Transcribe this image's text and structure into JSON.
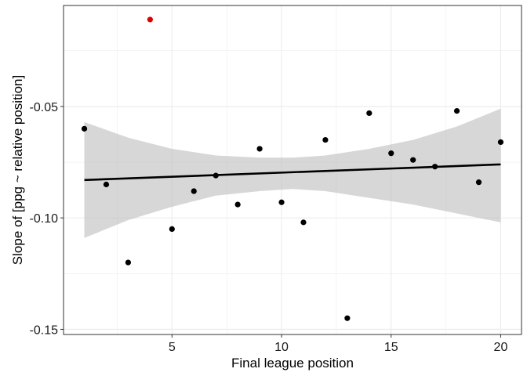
{
  "chart_data": {
    "type": "scatter",
    "xlabel": "Final league position",
    "ylabel": "Slope of [ppg ~ relative position]",
    "xlim": [
      0.05,
      20.95
    ],
    "ylim": [
      -0.1523,
      -0.0047
    ],
    "x_ticks": [
      5,
      10,
      15,
      20
    ],
    "x_tick_labels": [
      "5",
      "10",
      "15",
      "20"
    ],
    "y_ticks": [
      -0.15,
      -0.1,
      -0.05
    ],
    "y_tick_labels": [
      "-0.15",
      "-0.10",
      "-0.05"
    ],
    "grid": true,
    "legend": "none",
    "points": [
      {
        "x": 1,
        "y": -0.06
      },
      {
        "x": 2,
        "y": -0.085
      },
      {
        "x": 3,
        "y": -0.12
      },
      {
        "x": 4,
        "y": -0.011,
        "highlight": true
      },
      {
        "x": 5,
        "y": -0.105
      },
      {
        "x": 6,
        "y": -0.088
      },
      {
        "x": 7,
        "y": -0.081
      },
      {
        "x": 8,
        "y": -0.094
      },
      {
        "x": 9,
        "y": -0.069
      },
      {
        "x": 10,
        "y": -0.093
      },
      {
        "x": 11,
        "y": -0.102
      },
      {
        "x": 12,
        "y": -0.065
      },
      {
        "x": 13,
        "y": -0.145
      },
      {
        "x": 14,
        "y": -0.053
      },
      {
        "x": 15,
        "y": -0.071
      },
      {
        "x": 16,
        "y": -0.074
      },
      {
        "x": 17,
        "y": -0.077
      },
      {
        "x": 18,
        "y": -0.052
      },
      {
        "x": 19,
        "y": -0.084
      },
      {
        "x": 20,
        "y": -0.066
      }
    ],
    "fit_line": {
      "x": [
        1,
        20
      ],
      "y": [
        -0.083,
        -0.076
      ]
    },
    "confidence_band": {
      "x": [
        1,
        3,
        5,
        7,
        9,
        10.5,
        12,
        14,
        16,
        18,
        20
      ],
      "lower": [
        -0.109,
        -0.101,
        -0.095,
        -0.09,
        -0.088,
        -0.087,
        -0.088,
        -0.091,
        -0.094,
        -0.098,
        -0.102
      ],
      "upper": [
        -0.057,
        -0.064,
        -0.069,
        -0.072,
        -0.073,
        -0.073,
        -0.072,
        -0.069,
        -0.065,
        -0.059,
        -0.051
      ]
    },
    "colors": {
      "point": "#000000",
      "highlight": "#dd0000",
      "line": "#000000",
      "band": "#bdbdbd",
      "grid": "#ebebeb"
    }
  }
}
